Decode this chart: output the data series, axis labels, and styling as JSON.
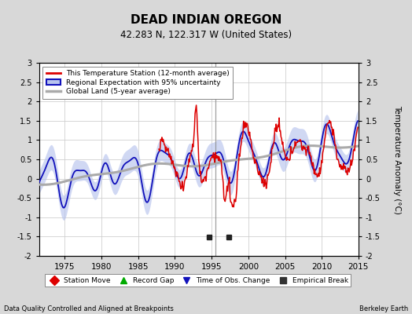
{
  "title": "DEAD INDIAN OREGON",
  "subtitle": "42.283 N, 122.317 W (United States)",
  "ylabel": "Temperature Anomaly (°C)",
  "footer_left": "Data Quality Controlled and Aligned at Breakpoints",
  "footer_right": "Berkeley Earth",
  "xlim": [
    1971.5,
    2015
  ],
  "ylim": [
    -2,
    3
  ],
  "yticks": [
    -2,
    -1.5,
    -1,
    -0.5,
    0,
    0.5,
    1,
    1.5,
    2,
    2.5,
    3
  ],
  "xticks": [
    1975,
    1980,
    1985,
    1990,
    1995,
    2000,
    2005,
    2010,
    2015
  ],
  "bg_color": "#d8d8d8",
  "plot_bg_color": "#ffffff",
  "grid_color": "#cccccc",
  "regional_fill_color": "#b8c4ee",
  "regional_line_color": "#1111bb",
  "station_line_color": "#dd0000",
  "global_line_color": "#aaaaaa",
  "empirical_break_years": [
    1994.7,
    1997.3
  ],
  "vertical_line_year": 1995.5,
  "legend_entries": [
    {
      "label": "This Temperature Station (12-month average)",
      "color": "#dd0000"
    },
    {
      "label": "Regional Expectation with 95% uncertainty",
      "color": "#1111bb",
      "fill": "#b8c4ee"
    },
    {
      "label": "Global Land (5-year average)",
      "color": "#aaaaaa"
    }
  ],
  "bottom_legend": [
    {
      "label": "Station Move",
      "marker": "D",
      "color": "#dd0000"
    },
    {
      "label": "Record Gap",
      "marker": "^",
      "color": "#00aa00"
    },
    {
      "label": "Time of Obs. Change",
      "marker": "v",
      "color": "#1111bb"
    },
    {
      "label": "Empirical Break",
      "marker": "s",
      "color": "#333333"
    }
  ]
}
